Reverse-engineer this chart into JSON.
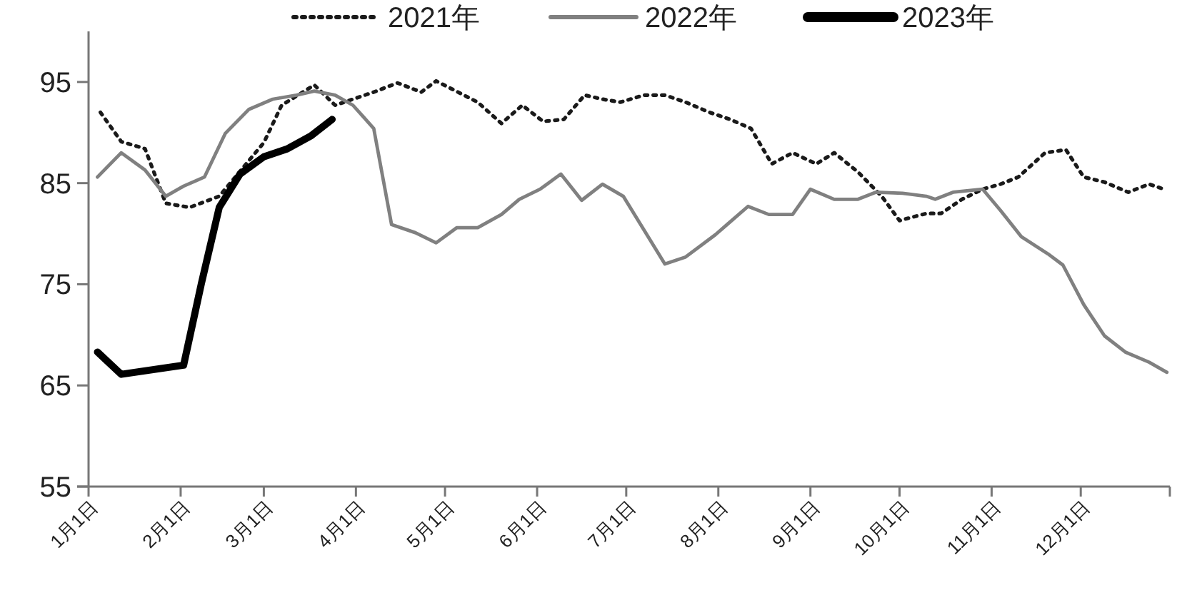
{
  "chart_data": {
    "type": "line",
    "xlim": [
      "--01-01",
      "--12-31"
    ],
    "xticks": [
      {
        "value": "--01-01",
        "label": "1月1日"
      },
      {
        "value": "--02-01",
        "label": "2月1日"
      },
      {
        "value": "--03-01",
        "label": "3月1日"
      },
      {
        "value": "--04-01",
        "label": "4月1日"
      },
      {
        "value": "--05-01",
        "label": "5月1日"
      },
      {
        "value": "--06-01",
        "label": "6月1日"
      },
      {
        "value": "--07-01",
        "label": "7月1日"
      },
      {
        "value": "--08-01",
        "label": "8月1日"
      },
      {
        "value": "--09-01",
        "label": "9月1日"
      },
      {
        "value": "--10-01",
        "label": "10月1日"
      },
      {
        "value": "--11-01",
        "label": "11月1日"
      },
      {
        "value": "--12-01",
        "label": "12月1日"
      },
      {
        "value": "--12-31",
        "label": null
      }
    ],
    "ylim": [
      55,
      100
    ],
    "yticks": [
      55,
      65,
      75,
      85,
      95
    ],
    "grid": false,
    "legend": "top",
    "marker": "none",
    "series": [
      {
        "name": "2021年",
        "color": "#1a1a1a",
        "line_style": "dotted",
        "x": [
          "--01-05",
          "--01-12",
          "--01-20",
          "--01-27",
          "--02-04",
          "--02-14",
          "--03-01",
          "--03-07",
          "--03-18",
          "--03-25",
          "--04-07",
          "--04-15",
          "--04-23",
          "--04-28",
          "--05-12",
          "--05-20",
          "--05-27",
          "--06-03",
          "--06-10",
          "--06-17",
          "--06-23",
          "--06-29",
          "--07-07",
          "--07-14",
          "--07-21",
          "--07-29",
          "--08-05",
          "--08-12",
          "--08-19",
          "--08-26",
          "--09-03",
          "--09-09",
          "--09-17",
          "--09-25",
          "--10-01",
          "--10-10",
          "--10-15",
          "--10-22",
          "--10-29",
          "--11-04",
          "--11-10",
          "--11-19",
          "--11-26",
          "--12-02",
          "--12-09",
          "--12-17",
          "--12-24",
          "--12-29"
        ],
        "values": [
          92,
          89.1,
          88.4,
          83,
          82.6,
          83.7,
          89,
          92.7,
          94.7,
          92.7,
          94,
          94.9,
          94,
          95.1,
          93,
          90.9,
          92.7,
          91.1,
          91.3,
          93.7,
          93.3,
          93,
          93.7,
          93.7,
          93,
          92,
          91.3,
          90.4,
          86.9,
          88,
          86.9,
          88,
          86.1,
          83.7,
          81.3,
          82,
          82,
          83.4,
          84.4,
          84.9,
          85.6,
          88,
          88.3,
          85.6,
          85.1,
          84.1,
          84.9,
          84.4
        ]
      },
      {
        "name": "2022年",
        "color": "#808080",
        "line_style": "solid",
        "x": [
          "--01-04",
          "--01-12",
          "--01-20",
          "--01-27",
          "--02-02",
          "--02-09",
          "--02-16",
          "--02-24",
          "--03-04",
          "--03-12",
          "--03-18",
          "--03-25",
          "--03-31",
          "--04-07",
          "--04-13",
          "--04-21",
          "--04-28",
          "--05-05",
          "--05-12",
          "--05-20",
          "--05-26",
          "--06-02",
          "--06-09",
          "--06-16",
          "--06-23",
          "--06-30",
          "--07-14",
          "--07-21",
          "--07-31",
          "--08-11",
          "--08-18",
          "--08-26",
          "--09-01",
          "--09-09",
          "--09-17",
          "--09-23",
          "--10-02",
          "--10-10",
          "--10-13",
          "--10-19",
          "--10-29",
          "--11-04",
          "--11-11",
          "--11-20",
          "--11-25",
          "--12-02",
          "--12-09",
          "--12-16",
          "--12-24",
          "--12-30"
        ],
        "values": [
          85.6,
          88,
          86.3,
          83.7,
          84.7,
          85.6,
          89.9,
          92.3,
          93.3,
          93.7,
          94.1,
          93.7,
          92.7,
          90.4,
          80.9,
          80.1,
          79.1,
          80.6,
          80.6,
          81.9,
          83.4,
          84.4,
          85.9,
          83.3,
          84.9,
          83.7,
          77,
          77.7,
          79.9,
          82.7,
          81.9,
          81.9,
          84.4,
          83.4,
          83.4,
          84.1,
          84,
          83.7,
          83.4,
          84.1,
          84.4,
          82.3,
          79.7,
          78,
          76.9,
          73,
          69.9,
          68.3,
          67.3,
          66.3
        ]
      },
      {
        "name": "2023年",
        "color": "#000000",
        "line_style": "solid",
        "x": [
          "--01-04",
          "--01-12",
          "--02-02",
          "--02-08",
          "--02-14",
          "--02-21",
          "--03-01",
          "--03-09",
          "--03-17",
          "--03-24"
        ],
        "values": [
          68.3,
          66.1,
          67,
          75.1,
          82.6,
          85.9,
          87.6,
          88.4,
          89.7,
          91.3
        ]
      }
    ]
  }
}
